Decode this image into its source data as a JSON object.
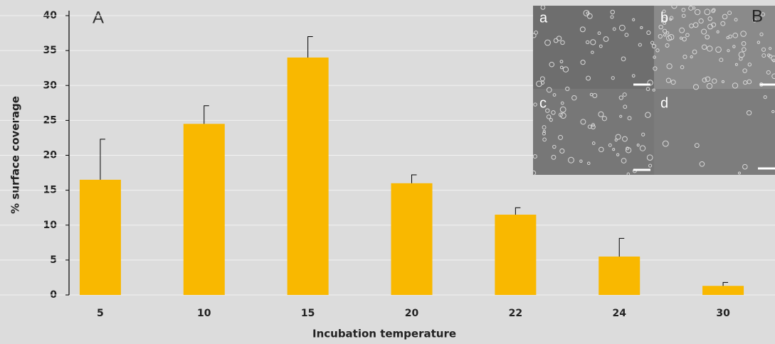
{
  "chart_data": {
    "type": "bar",
    "annotations": [
      "A"
    ],
    "x_label": "Incubation temperature",
    "y_label": "% surface coverage",
    "categories": [
      "5",
      "10",
      "15",
      "20",
      "22",
      "24",
      "30"
    ],
    "values": [
      16.5,
      24.5,
      34,
      16,
      11.5,
      5.5,
      1.3
    ],
    "errors": [
      5.8,
      2.6,
      3,
      1.2,
      1.0,
      2.6,
      0.5
    ],
    "color": "#f9b800",
    "ylim": [
      0,
      40
    ],
    "yticks": [
      0,
      5,
      10,
      15,
      20,
      25,
      30,
      35,
      40
    ],
    "grid": true
  },
  "inset": {
    "label": "B",
    "panels": [
      "a",
      "b",
      "c",
      "d"
    ]
  }
}
